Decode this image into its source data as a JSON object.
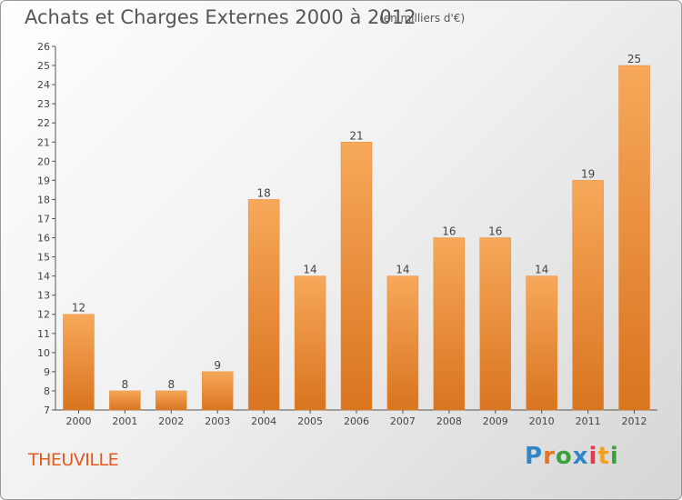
{
  "title": "Achats et Charges Externes 2000 à 2012",
  "unit": "(en milliers d'€)",
  "commune": "THEUVILLE",
  "logo": {
    "letters": [
      "P",
      "r",
      "o",
      "x",
      "i",
      "t",
      "i"
    ],
    "colors": [
      "#2f86c8",
      "#e8731c",
      "#3aa23a",
      "#2f86c8",
      "#e23b4a",
      "#f0a020",
      "#3aa23a"
    ]
  },
  "colors": {
    "bar_light": "#f7a85a",
    "bar_dark": "#d9741f",
    "commune": "#e05a1e"
  },
  "chart_data": {
    "type": "bar",
    "categories": [
      "2000",
      "2001",
      "2002",
      "2003",
      "2004",
      "2005",
      "2006",
      "2007",
      "2008",
      "2009",
      "2010",
      "2011",
      "2012"
    ],
    "values": [
      12,
      8,
      8,
      9,
      18,
      14,
      21,
      14,
      16,
      16,
      14,
      19,
      25
    ],
    "ylim": [
      7,
      26
    ],
    "yticks": [
      7,
      8,
      9,
      10,
      11,
      12,
      13,
      14,
      15,
      16,
      17,
      18,
      19,
      20,
      21,
      22,
      23,
      24,
      25,
      26
    ],
    "grid": false,
    "legend": "none"
  }
}
